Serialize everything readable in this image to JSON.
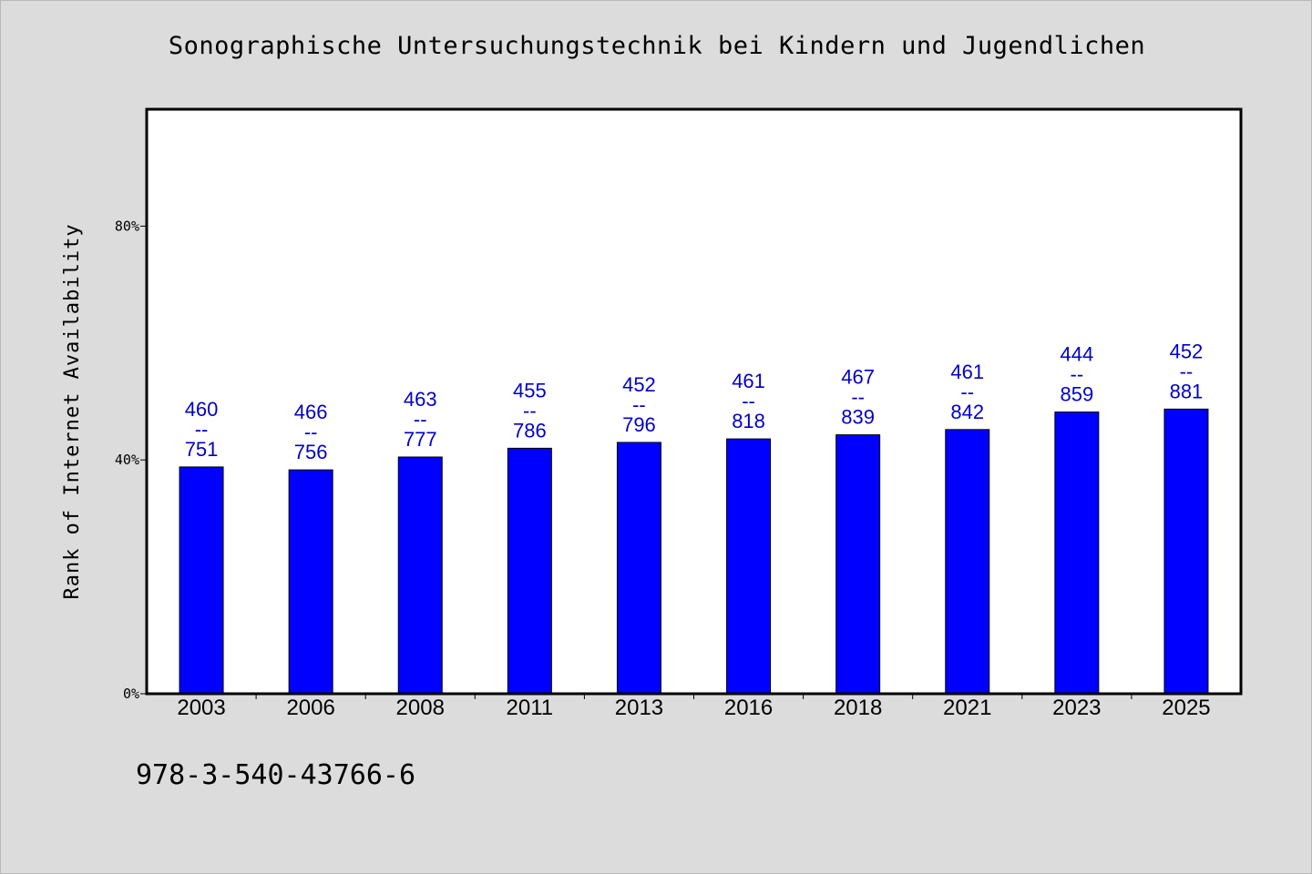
{
  "chart_data": {
    "type": "bar",
    "title": "Sonographische Untersuchungstechnik bei Kindern und Jugendlichen",
    "ylabel": "Rank of Internet Availability",
    "xlabel": "",
    "categories": [
      "2003",
      "2006",
      "2008",
      "2011",
      "2013",
      "2016",
      "2018",
      "2021",
      "2023",
      "2025"
    ],
    "values": [
      38.8,
      38.3,
      40.5,
      42.0,
      43.0,
      43.6,
      44.3,
      45.2,
      48.2,
      48.7
    ],
    "data_labels": [
      [
        "460",
        "--",
        "751"
      ],
      [
        "466",
        "--",
        "756"
      ],
      [
        "463",
        "--",
        "777"
      ],
      [
        "455",
        "--",
        "786"
      ],
      [
        "452",
        "--",
        "796"
      ],
      [
        "461",
        "--",
        "818"
      ],
      [
        "467",
        "--",
        "839"
      ],
      [
        "461",
        "--",
        "842"
      ],
      [
        "444",
        "--",
        "859"
      ],
      [
        "452",
        "--",
        "881"
      ]
    ],
    "yticks": [
      {
        "value": 0,
        "label": "0%"
      },
      {
        "value": 40,
        "label": "40%"
      },
      {
        "value": 80,
        "label": "80%"
      }
    ],
    "ylim": [
      0,
      100
    ],
    "grid": false,
    "legend": "none",
    "bar_color": "#0000ff",
    "label_color": "#0000cc"
  },
  "footer": {
    "code": "978-3-540-43766-6"
  }
}
